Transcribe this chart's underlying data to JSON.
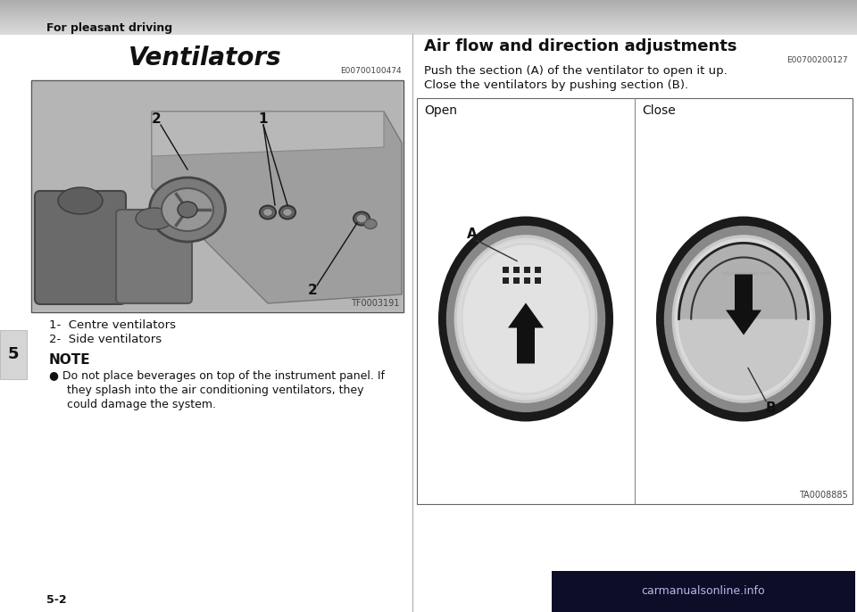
{
  "page_bg": "#ffffff",
  "header_text": "For pleasant driving",
  "section_title": "Ventilators",
  "code_left": "E00700100474",
  "right_section_title": "Air flow and direction adjustments",
  "code_right": "E00700200127",
  "right_desc_line1": "Push the section (A) of the ventilator to open it up.",
  "right_desc_line2": "Close the ventilators by pushing section (B).",
  "open_label": "Open",
  "close_label": "Close",
  "item1": "1-  Centre ventilators",
  "item2": "2-  Side ventilators",
  "note_title": "NOTE",
  "note_line1": "● Do not place beverages on top of the instrument panel. If",
  "note_line2": "     they splash into the air conditioning ventilators, they",
  "note_line3": "     could damage the system.",
  "tf_code": "TF0003191",
  "ta_code": "TA0008885",
  "page_num": "5-2",
  "chapter_num": "5"
}
